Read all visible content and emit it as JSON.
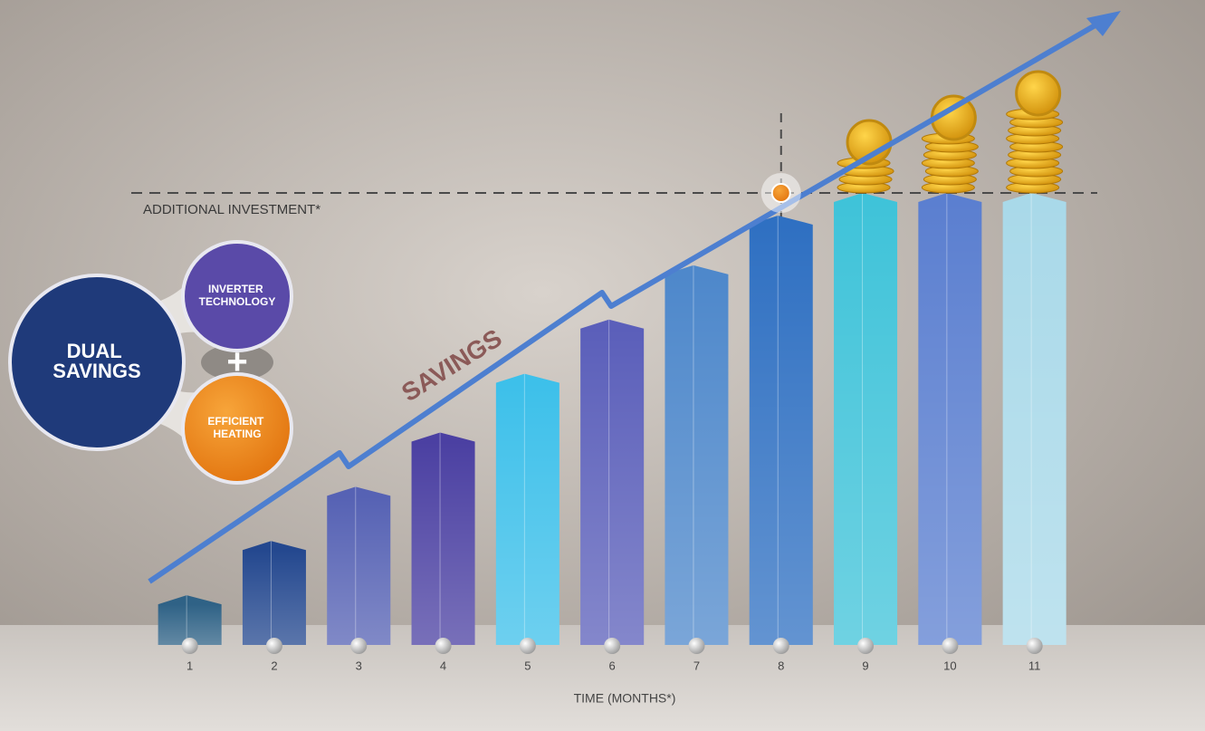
{
  "chart_data": {
    "type": "bar",
    "categories": [
      "1",
      "2",
      "3",
      "4",
      "5",
      "6",
      "7",
      "8",
      "9",
      "10",
      "11"
    ],
    "values": [
      11,
      23,
      35,
      47,
      60,
      72,
      84,
      95,
      100,
      100,
      100
    ],
    "colors": [
      "#2f6286",
      "#24488f",
      "#5662b4",
      "#4b40a2",
      "#3dc0ea",
      "#5b5fba",
      "#4e88cb",
      "#2f70c2",
      "#3fc3d9",
      "#5b7fd0",
      "#a9d9e9"
    ],
    "ylim": [
      0,
      100
    ],
    "xlabel": "TIME (MONTHS*)",
    "reference_line": {
      "label": "ADDITIONAL INVESTMENT*",
      "value": 100
    },
    "arrow_label": "SAVINGS",
    "badge": {
      "title": [
        "DUAL",
        "SAVINGS"
      ],
      "joiner": "+",
      "parts": [
        [
          "INVERTER",
          "TECHNOLOGY"
        ],
        [
          "EFFICIENT",
          "HEATING"
        ]
      ]
    }
  }
}
